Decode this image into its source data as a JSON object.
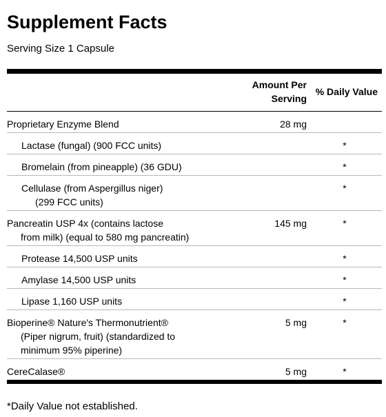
{
  "title": "Supplement Facts",
  "serving_size": "Serving Size 1 Capsule",
  "columns": {
    "amount_per_serving": "Amount Per\nServing",
    "daily_value": "% Daily Value"
  },
  "rows": [
    {
      "lines": [
        "Proprietary Enzyme Blend"
      ],
      "amount": "28 mg",
      "dv": ""
    },
    {
      "lines": [
        "Lactase (fungal) (900 FCC units)"
      ],
      "amount": "",
      "dv": "*"
    },
    {
      "lines": [
        "Bromelain (from pineapple) (36 GDU)"
      ],
      "amount": "",
      "dv": "*"
    },
    {
      "lines": [
        "Cellulase (from Aspergillus niger)",
        "(299 FCC units)"
      ],
      "amount": "",
      "dv": "*"
    },
    {
      "lines": [
        "Pancreatin USP 4x (contains lactose",
        "from milk) (equal to 580 mg pancreatin)"
      ],
      "amount": "145 mg",
      "dv": "*"
    },
    {
      "lines": [
        "Protease 14,500 USP units"
      ],
      "amount": "",
      "dv": "*"
    },
    {
      "lines": [
        "Amylase 14,500 USP units"
      ],
      "amount": "",
      "dv": "*"
    },
    {
      "lines": [
        "Lipase 1,160 USP units"
      ],
      "amount": "",
      "dv": "*"
    },
    {
      "lines": [
        "Bioperine® Nature's Thermonutrient®",
        "(Piper nigrum, fruit) (standardized to",
        "minimum 95% piperine)"
      ],
      "amount": "5 mg",
      "dv": "*"
    },
    {
      "lines": [
        "CereCalase®"
      ],
      "amount": "5 mg",
      "dv": "*"
    }
  ],
  "footnote": "*Daily Value not established."
}
